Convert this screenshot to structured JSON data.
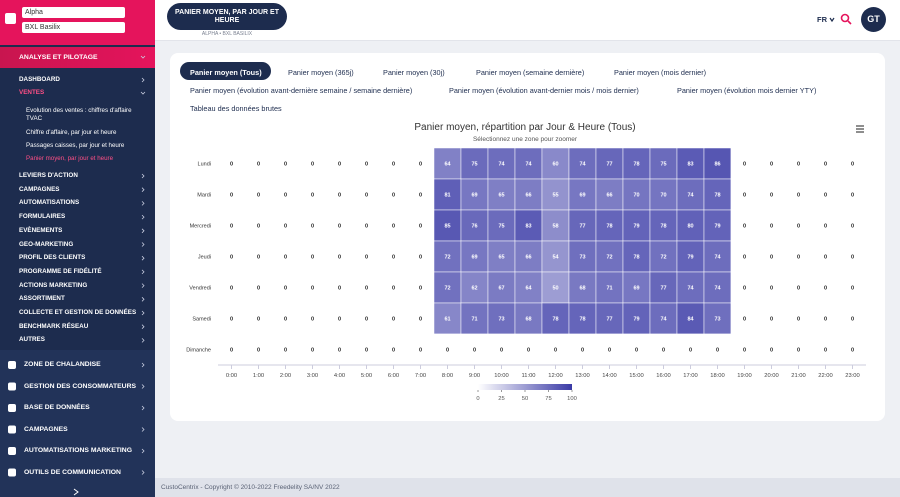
{
  "sidebar": {
    "account": "Alpha",
    "site": "BXL Basilix",
    "section": "ANALYSE ET PILOTAGE",
    "menu_top": [
      "DASHBOARD",
      "VENTES"
    ],
    "submenu": [
      "Evolution des ventes : chiffres d'affaire TVAC",
      "Chiffre d'affaire, par jour et heure",
      "Passages caisses, par jour et heure",
      "Panier moyen, par jour et heure"
    ],
    "menu_rest": [
      "LEVIERS D'ACTION",
      "CAMPAGNES",
      "AUTOMATISATIONS",
      "FORMULAIRES",
      "EVÈNEMENTS",
      "GEO-MARKETING",
      "PROFIL DES CLIENTS",
      "PROGRAMME DE FIDÉLITÉ",
      "ACTIONS MARKETING",
      "ASSORTIMENT",
      "COLLECTE ET GESTION DE DONNÉES",
      "BENCHMARK RÉSEAU",
      "AUTRES"
    ],
    "modules": [
      "ZONE DE CHALANDISE",
      "GESTION DES CONSOMMATEURS",
      "BASE DE DONNÉES",
      "CAMPAGNES",
      "AUTOMATISATIONS MARKETING",
      "OUTILS DE COMMUNICATION"
    ]
  },
  "header": {
    "badge_title": "PANIER MOYEN, PAR JOUR ET HEURE",
    "badge_subtitle": "ALPHA • BXL BASILIX",
    "language": "FR",
    "avatar": "GT"
  },
  "tabs": [
    "Panier moyen (Tous)",
    "Panier moyen (365j)",
    "Panier moyen (30j)",
    "Panier moyen (semaine dernière)",
    "Panier moyen (mois dernier)",
    "Panier moyen (évolution avant-dernière semaine / semaine dernière)",
    "Panier moyen (évolution avant-dernier mois / mois dernier)",
    "Panier moyen (évolution mois dernier YTY)",
    "Tableau des données brutes"
  ],
  "chart": {
    "type": "heatmap",
    "title": "Panier moyen, répartition par Jour & Heure (Tous)",
    "subtitle": "Sélectionnez une zone pour zoomer",
    "x": [
      "0:00",
      "1:00",
      "2:00",
      "3:00",
      "4:00",
      "5:00",
      "6:00",
      "7:00",
      "8:00",
      "9:00",
      "10:00",
      "11:00",
      "12:00",
      "13:00",
      "14:00",
      "15:00",
      "16:00",
      "17:00",
      "18:00",
      "19:00",
      "20:00",
      "21:00",
      "22:00",
      "23:00"
    ],
    "y": [
      "Lundi",
      "Mardi",
      "Mercredi",
      "Jeudi",
      "Vendredi",
      "Samedi",
      "Dimanche"
    ],
    "values": [
      [
        0,
        0,
        0,
        0,
        0,
        0,
        0,
        0,
        64,
        75,
        74,
        74,
        60,
        74,
        77,
        78,
        75,
        83,
        86,
        0,
        0,
        0,
        0,
        0
      ],
      [
        0,
        0,
        0,
        0,
        0,
        0,
        0,
        0,
        81,
        69,
        65,
        66,
        55,
        69,
        66,
        70,
        70,
        74,
        78,
        0,
        0,
        0,
        0,
        0
      ],
      [
        0,
        0,
        0,
        0,
        0,
        0,
        0,
        0,
        85,
        76,
        75,
        83,
        58,
        77,
        78,
        79,
        78,
        80,
        79,
        0,
        0,
        0,
        0,
        0
      ],
      [
        0,
        0,
        0,
        0,
        0,
        0,
        0,
        0,
        72,
        69,
        65,
        66,
        54,
        73,
        72,
        78,
        72,
        79,
        74,
        0,
        0,
        0,
        0,
        0
      ],
      [
        0,
        0,
        0,
        0,
        0,
        0,
        0,
        0,
        72,
        62,
        67,
        64,
        50,
        68,
        71,
        69,
        77,
        74,
        74,
        0,
        0,
        0,
        0,
        0
      ],
      [
        0,
        0,
        0,
        0,
        0,
        0,
        0,
        0,
        61,
        71,
        73,
        68,
        78,
        78,
        77,
        79,
        74,
        84,
        73,
        0,
        0,
        0,
        0,
        0
      ],
      [
        0,
        0,
        0,
        0,
        0,
        0,
        0,
        0,
        0,
        0,
        0,
        0,
        0,
        0,
        0,
        0,
        0,
        0,
        0,
        0,
        0,
        0,
        0,
        0
      ]
    ],
    "colorlim": [
      0,
      100
    ],
    "colorticks": [
      0,
      25,
      50,
      75,
      100
    ],
    "color_min": "#ffffff",
    "color_max": "#3a3aa6"
  },
  "footer": "CustoCentrix - Copyright © 2010-2022 Freedelity SA/NV 2022"
}
